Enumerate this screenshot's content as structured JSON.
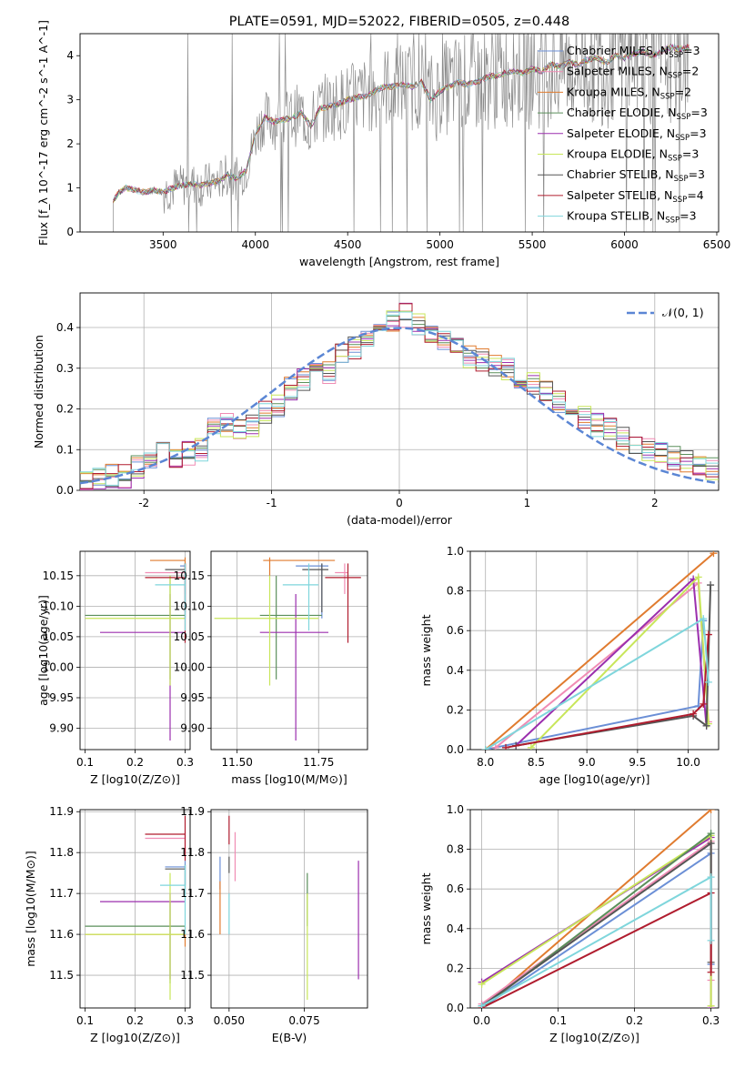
{
  "chart_data": [
    {
      "id": "spectrum",
      "type": "line",
      "title": "PLATE=0591, MJD=52022, FIBERID=0505, z=0.448",
      "xlabel": "wavelength [Angstrom, rest frame]",
      "ylabel": "Flux [f_λ 10^-17 erg cm^-2 s^-1 A^-1]",
      "xlim": [
        3050,
        6510
      ],
      "ylim": [
        0,
        4.5
      ],
      "xticks": [
        3500,
        4000,
        4500,
        5000,
        5500,
        6000,
        6500
      ],
      "yticks": [
        0,
        1,
        2,
        3,
        4
      ],
      "grid": false,
      "legend_position": "top-right",
      "legend": [
        {
          "label": "Chabrier MILES, N_SSP=3",
          "color": "#6b8fd6"
        },
        {
          "label": "Salpeter MILES, N_SSP=2",
          "color": "#f08cb4"
        },
        {
          "label": "Kroupa MILES, N_SSP=2",
          "color": "#e07b2f"
        },
        {
          "label": "Chabrier ELODIE, N_SSP=3",
          "color": "#5a8f5a"
        },
        {
          "label": "Salpeter ELODIE, N_SSP=3",
          "color": "#9b2fae"
        },
        {
          "label": "Kroupa ELODIE, N_SSP=3",
          "color": "#c8e65a"
        },
        {
          "label": "Chabrier STELIB, N_SSP=3",
          "color": "#555555"
        },
        {
          "label": "Salpeter STELIB, N_SSP=4",
          "color": "#b01c2e"
        },
        {
          "label": "Kroupa STELIB, N_SSP=3",
          "color": "#7fd6dc"
        }
      ],
      "model_curve": {
        "x": [
          3230,
          3260,
          3300,
          3350,
          3400,
          3450,
          3500,
          3550,
          3600,
          3650,
          3700,
          3750,
          3800,
          3850,
          3900,
          3950,
          4000,
          4050,
          4100,
          4150,
          4200,
          4250,
          4300,
          4350,
          4400,
          4450,
          4500,
          4550,
          4600,
          4650,
          4700,
          4750,
          4800,
          4850,
          4900,
          4950,
          5000,
          5050,
          5100,
          5150,
          5200,
          5250,
          5300,
          5350,
          5400,
          5450,
          5500,
          5550,
          5600,
          5650,
          5700,
          5750,
          5800,
          5850,
          5900,
          5950,
          6000,
          6050,
          6100,
          6150,
          6200,
          6250,
          6300,
          6350
        ],
        "y": [
          0.7,
          0.9,
          1.0,
          0.95,
          0.9,
          0.95,
          0.9,
          1.0,
          1.05,
          1.1,
          1.05,
          1.1,
          1.15,
          1.3,
          1.2,
          1.4,
          2.2,
          2.6,
          2.5,
          2.55,
          2.6,
          2.7,
          2.4,
          2.8,
          2.85,
          2.9,
          3.0,
          3.05,
          3.1,
          3.2,
          3.3,
          3.3,
          3.35,
          3.3,
          3.4,
          3.0,
          3.2,
          3.3,
          3.4,
          3.35,
          3.4,
          3.5,
          3.55,
          3.6,
          3.65,
          3.6,
          3.7,
          3.65,
          3.8,
          3.75,
          3.85,
          3.8,
          3.9,
          3.95,
          3.85,
          4.0,
          3.95,
          4.05,
          4.1,
          4.0,
          4.1,
          4.2,
          4.15,
          4.2
        ]
      }
    },
    {
      "id": "residual-histogram",
      "type": "line",
      "xlabel": "(data-model)/error",
      "ylabel": "Normed distribution",
      "xlim": [
        -2.5,
        2.5
      ],
      "ylim": [
        0,
        0.485
      ],
      "xticks": [
        -2,
        -1,
        0,
        1,
        2
      ],
      "yticks": [
        0.0,
        0.1,
        0.2,
        0.3,
        0.4
      ],
      "grid": true,
      "legend_position": "top-right",
      "legend": [
        {
          "label": "𝒩(0, 1)",
          "color": "#5b86d4",
          "style": "dashed"
        }
      ],
      "bin_edges_start": -2.5,
      "bin_width": 0.1,
      "bin_values": [
        0.03,
        0.03,
        0.035,
        0.035,
        0.06,
        0.07,
        0.09,
        0.085,
        0.09,
        0.1,
        0.15,
        0.16,
        0.15,
        0.16,
        0.19,
        0.21,
        0.25,
        0.27,
        0.29,
        0.29,
        0.33,
        0.35,
        0.37,
        0.4,
        0.42,
        0.43,
        0.41,
        0.39,
        0.37,
        0.36,
        0.33,
        0.32,
        0.31,
        0.3,
        0.28,
        0.26,
        0.25,
        0.22,
        0.2,
        0.18,
        0.16,
        0.15,
        0.13,
        0.11,
        0.1,
        0.09,
        0.08,
        0.07,
        0.06,
        0.05
      ]
    },
    {
      "id": "age-vs-Z",
      "type": "scatter",
      "xlabel": "Z [log10(Z/Z⊙)]",
      "ylabel": "age  [log10(age/yr)]",
      "xlim": [
        0.09,
        0.31
      ],
      "ylim": [
        9.865,
        10.19
      ],
      "xticks": [
        0.1,
        0.2,
        0.3
      ],
      "yticks": [
        9.9,
        9.95,
        10.0,
        10.05,
        10.1,
        10.15
      ],
      "grid": true,
      "series": [
        {
          "color": "#6b8fd6",
          "x": 0.3,
          "y": 10.166,
          "xerr": [
            0.29,
            0.3
          ],
          "yerr": [
            10.08,
            10.17
          ]
        },
        {
          "color": "#f08cb4",
          "x": 0.3,
          "y": 10.155,
          "xerr": [
            0.22,
            0.3
          ],
          "yerr": [
            10.12,
            10.17
          ]
        },
        {
          "color": "#e07b2f",
          "x": 0.3,
          "y": 10.175,
          "xerr": [
            0.23,
            0.3
          ],
          "yerr": [
            10.15,
            10.18
          ]
        },
        {
          "color": "#5a8f5a",
          "x": 0.27,
          "y": 10.085,
          "xerr": [
            0.1,
            0.3
          ],
          "yerr": [
            9.98,
            10.15
          ]
        },
        {
          "color": "#9b2fae",
          "x": 0.27,
          "y": 10.057,
          "xerr": [
            0.13,
            0.3
          ],
          "yerr": [
            9.88,
            10.12
          ]
        },
        {
          "color": "#c8e65a",
          "x": 0.27,
          "y": 10.08,
          "xerr": [
            0.1,
            0.3
          ],
          "yerr": [
            9.97,
            10.15
          ]
        },
        {
          "color": "#555555",
          "x": 0.3,
          "y": 10.16,
          "xerr": [
            0.26,
            0.3
          ],
          "yerr": [
            10.09,
            10.17
          ]
        },
        {
          "color": "#b01c2e",
          "x": 0.3,
          "y": 10.147,
          "xerr": [
            0.22,
            0.3
          ],
          "yerr": [
            10.04,
            10.17
          ]
        },
        {
          "color": "#7fd6dc",
          "x": 0.3,
          "y": 10.135,
          "xerr": [
            0.24,
            0.3
          ],
          "yerr": [
            10.06,
            10.17
          ]
        }
      ]
    },
    {
      "id": "age-vs-mass",
      "type": "scatter",
      "xlabel": "mass [log10(M/M⊙)]",
      "ylabel": "",
      "xlim": [
        11.42,
        11.9
      ],
      "ylim": [
        9.865,
        10.19
      ],
      "xticks": [
        11.5,
        11.75
      ],
      "xtick_labels": [
        "11.50",
        "11.75"
      ],
      "yticks": [
        9.9,
        9.95,
        10.0,
        10.05,
        10.1,
        10.15
      ],
      "grid": true,
      "series": [
        {
          "color": "#6b8fd6",
          "x": 11.76,
          "y": 10.166,
          "xerr": [
            11.68,
            11.78
          ],
          "yerr": [
            10.08,
            10.17
          ]
        },
        {
          "color": "#f08cb4",
          "x": 11.83,
          "y": 10.155,
          "xerr": [
            11.8,
            11.84
          ],
          "yerr": [
            10.12,
            10.17
          ]
        },
        {
          "color": "#e07b2f",
          "x": 11.6,
          "y": 10.175,
          "xerr": [
            11.58,
            11.8
          ],
          "yerr": [
            10.15,
            10.18
          ]
        },
        {
          "color": "#5a8f5a",
          "x": 11.62,
          "y": 10.085,
          "xerr": [
            11.57,
            11.76
          ],
          "yerr": [
            9.98,
            10.15
          ]
        },
        {
          "color": "#9b2fae",
          "x": 11.68,
          "y": 10.057,
          "xerr": [
            11.57,
            11.78
          ],
          "yerr": [
            9.88,
            10.12
          ]
        },
        {
          "color": "#c8e65a",
          "x": 11.6,
          "y": 10.08,
          "xerr": [
            11.43,
            11.75
          ],
          "yerr": [
            9.97,
            10.15
          ]
        },
        {
          "color": "#555555",
          "x": 11.76,
          "y": 10.16,
          "xerr": [
            11.7,
            11.78
          ],
          "yerr": [
            10.09,
            10.17
          ]
        },
        {
          "color": "#b01c2e",
          "x": 11.84,
          "y": 10.147,
          "xerr": [
            11.77,
            11.88
          ],
          "yerr": [
            10.04,
            10.17
          ]
        },
        {
          "color": "#7fd6dc",
          "x": 11.72,
          "y": 10.135,
          "xerr": [
            11.64,
            11.75
          ],
          "yerr": [
            10.06,
            10.17
          ]
        }
      ]
    },
    {
      "id": "weight-vs-age",
      "type": "line",
      "xlabel": "age  [log10(age/yr)]",
      "ylabel": "mass weight",
      "xlim": [
        7.85,
        10.3
      ],
      "ylim": [
        0,
        1.0
      ],
      "xticks": [
        8.0,
        8.5,
        9.0,
        9.5,
        10.0
      ],
      "yticks": [
        0.0,
        0.2,
        0.4,
        0.6,
        0.8,
        1.0
      ],
      "grid": true,
      "series": [
        {
          "color": "#6b8fd6",
          "x": [
            8.0,
            10.1,
            10.15
          ],
          "y": [
            0.0,
            0.22,
            0.65
          ]
        },
        {
          "color": "#e07b2f",
          "x": [
            8.0,
            10.25
          ],
          "y": [
            0.0,
            0.99
          ]
        },
        {
          "color": "#f08cb4",
          "x": [
            8.1,
            10.1,
            10.2
          ],
          "y": [
            0.01,
            0.84,
            0.14
          ]
        },
        {
          "color": "#9b2fae",
          "x": [
            8.3,
            10.05,
            10.18
          ],
          "y": [
            0.02,
            0.86,
            0.12
          ]
        },
        {
          "color": "#c8e65a",
          "x": [
            8.45,
            10.1,
            10.2
          ],
          "y": [
            0.01,
            0.87,
            0.13
          ]
        },
        {
          "color": "#555555",
          "x": [
            8.3,
            10.05,
            10.18,
            10.22
          ],
          "y": [
            0.02,
            0.17,
            0.12,
            0.83
          ]
        },
        {
          "color": "#b01c2e",
          "x": [
            8.2,
            10.05,
            10.15,
            10.2
          ],
          "y": [
            0.01,
            0.18,
            0.23,
            0.58
          ]
        },
        {
          "color": "#7fd6dc",
          "x": [
            8.0,
            10.15,
            10.2
          ],
          "y": [
            0.0,
            0.66,
            0.34
          ]
        }
      ]
    },
    {
      "id": "mass-vs-Z",
      "type": "scatter",
      "xlabel": "Z [log10(Z/Z⊙)]",
      "ylabel": "mass [log10(M/M⊙)]",
      "xlim": [
        0.09,
        0.31
      ],
      "ylim": [
        11.42,
        11.905
      ],
      "xticks": [
        0.1,
        0.2,
        0.3
      ],
      "yticks": [
        11.5,
        11.6,
        11.7,
        11.8,
        11.9
      ],
      "grid": true,
      "series": [
        {
          "color": "#6b8fd6",
          "x": 0.3,
          "y": 11.765,
          "xerr": [
            0.26,
            0.3
          ],
          "yerr": [
            11.72,
            11.78
          ]
        },
        {
          "color": "#f08cb4",
          "x": 0.3,
          "y": 11.835,
          "xerr": [
            0.22,
            0.3
          ],
          "yerr": [
            11.8,
            11.85
          ]
        },
        {
          "color": "#e07b2f",
          "x": 0.3,
          "y": 11.6,
          "xerr": [
            0.1,
            0.3
          ],
          "yerr": [
            11.57,
            11.62
          ]
        },
        {
          "color": "#5a8f5a",
          "x": 0.27,
          "y": 11.62,
          "xerr": [
            0.1,
            0.3
          ],
          "yerr": [
            11.48,
            11.68
          ]
        },
        {
          "color": "#9b2fae",
          "x": 0.27,
          "y": 11.68,
          "xerr": [
            0.13,
            0.3
          ],
          "yerr": [
            11.49,
            11.7
          ]
        },
        {
          "color": "#c8e65a",
          "x": 0.27,
          "y": 11.6,
          "xerr": [
            0.1,
            0.3
          ],
          "yerr": [
            11.44,
            11.75
          ]
        },
        {
          "color": "#555555",
          "x": 0.3,
          "y": 11.76,
          "xerr": [
            0.26,
            0.3
          ],
          "yerr": [
            11.7,
            11.77
          ]
        },
        {
          "color": "#b01c2e",
          "x": 0.3,
          "y": 11.845,
          "xerr": [
            0.22,
            0.3
          ],
          "yerr": [
            11.78,
            11.89
          ]
        },
        {
          "color": "#7fd6dc",
          "x": 0.3,
          "y": 11.72,
          "xerr": [
            0.25,
            0.3
          ],
          "yerr": [
            11.6,
            11.77
          ]
        }
      ]
    },
    {
      "id": "mass-vs-EBV",
      "type": "scatter",
      "xlabel": "E(B-V)",
      "ylabel": "",
      "xlim": [
        0.044,
        0.096
      ],
      "ylim": [
        11.42,
        11.905
      ],
      "xticks": [
        0.05,
        0.075
      ],
      "xtick_labels": [
        "0.050",
        "0.075"
      ],
      "yticks": [
        11.5,
        11.6,
        11.7,
        11.8,
        11.9
      ],
      "grid": true,
      "series": [
        {
          "color": "#6b8fd6",
          "x": 0.047,
          "y": 11.765,
          "yerr": [
            11.71,
            11.79
          ]
        },
        {
          "color": "#f08cb4",
          "x": 0.052,
          "y": 11.8,
          "yerr": [
            11.73,
            11.85
          ]
        },
        {
          "color": "#e07b2f",
          "x": 0.047,
          "y": 11.62,
          "yerr": [
            11.6,
            11.73
          ]
        },
        {
          "color": "#5a8f5a",
          "x": 0.076,
          "y": 11.7,
          "yerr": [
            11.62,
            11.75
          ]
        },
        {
          "color": "#9b2fae",
          "x": 0.093,
          "y": 11.68,
          "yerr": [
            11.49,
            11.78
          ]
        },
        {
          "color": "#c8e65a",
          "x": 0.076,
          "y": 11.55,
          "yerr": [
            11.44,
            11.7
          ]
        },
        {
          "color": "#555555",
          "x": 0.05,
          "y": 11.77,
          "yerr": [
            11.75,
            11.79
          ]
        },
        {
          "color": "#b01c2e",
          "x": 0.05,
          "y": 11.85,
          "yerr": [
            11.82,
            11.89
          ]
        },
        {
          "color": "#7fd6dc",
          "x": 0.05,
          "y": 11.65,
          "yerr": [
            11.6,
            11.7
          ]
        }
      ]
    },
    {
      "id": "weight-vs-Z",
      "type": "line",
      "xlabel": "Z [log10(Z/Z⊙)]",
      "ylabel": "mass weight",
      "xlim": [
        -0.015,
        0.31
      ],
      "ylim": [
        0,
        1.0
      ],
      "xticks": [
        0.0,
        0.1,
        0.2,
        0.3
      ],
      "yticks": [
        0.0,
        0.2,
        0.4,
        0.6,
        0.8,
        1.0
      ],
      "grid": true,
      "series": [
        {
          "color": "#6b8fd6",
          "x": [
            0.0,
            0.3,
            0.3
          ],
          "y": [
            0.0,
            0.78,
            0.22
          ]
        },
        {
          "color": "#e07b2f",
          "x": [
            0.0,
            0.3
          ],
          "y": [
            0.0,
            1.0
          ]
        },
        {
          "color": "#f08cb4",
          "x": [
            0.0,
            0.3,
            0.3
          ],
          "y": [
            0.02,
            0.84,
            0.14
          ]
        },
        {
          "color": "#9b2fae",
          "x": [
            0.0,
            0.3,
            0.3
          ],
          "y": [
            0.13,
            0.86,
            0.0
          ]
        },
        {
          "color": "#c8e65a",
          "x": [
            0.0,
            0.3,
            0.3
          ],
          "y": [
            0.12,
            0.87,
            0.01
          ]
        },
        {
          "color": "#5a8f5a",
          "x": [
            0.0,
            0.3
          ],
          "y": [
            0.0,
            0.88
          ]
        },
        {
          "color": "#555555",
          "x": [
            0.0,
            0.3,
            0.3
          ],
          "y": [
            0.01,
            0.83,
            0.23
          ]
        },
        {
          "color": "#b01c2e",
          "x": [
            0.0,
            0.3,
            0.3
          ],
          "y": [
            0.0,
            0.58,
            0.18
          ]
        },
        {
          "color": "#7fd6dc",
          "x": [
            0.0,
            0.3,
            0.3
          ],
          "y": [
            0.01,
            0.66,
            0.34
          ]
        }
      ]
    }
  ]
}
